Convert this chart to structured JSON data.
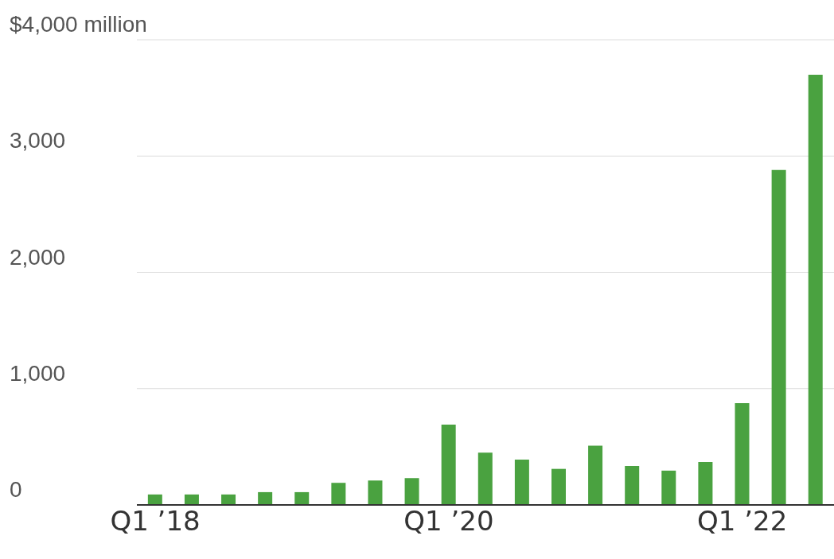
{
  "chart_data": {
    "type": "bar",
    "categories": [
      "Q1 ’18",
      null,
      null,
      null,
      null,
      null,
      null,
      null,
      "Q1 ’20",
      null,
      null,
      null,
      null,
      null,
      null,
      null,
      "Q1 ’22",
      null,
      null
    ],
    "values": [
      90,
      90,
      90,
      110,
      110,
      190,
      210,
      230,
      690,
      450,
      390,
      310,
      510,
      335,
      295,
      370,
      875,
      2880,
      3700
    ],
    "color": "#4aa240",
    "ylim": [
      0,
      4000
    ],
    "yticks": [
      {
        "value": 0,
        "label": "0"
      },
      {
        "value": 1000,
        "label": "1,000"
      },
      {
        "value": 2000,
        "label": "2,000"
      },
      {
        "value": 3000,
        "label": "3,000"
      },
      {
        "value": 4000,
        "label": "$4,000 million"
      }
    ],
    "grid": "y"
  }
}
